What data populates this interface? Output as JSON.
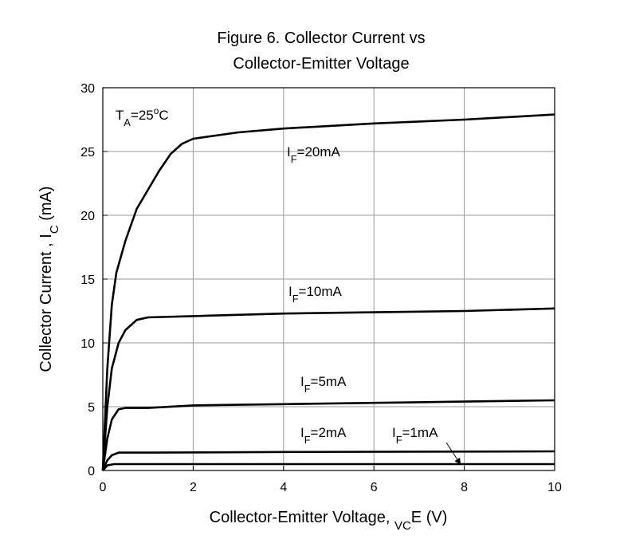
{
  "chart_data": {
    "type": "line",
    "title": [
      "Figure 6. Collector Current vs",
      "Collector-Emitter  Voltage"
    ],
    "xlabel": "Collector-Emitter Voltage, VCE (V)",
    "ylabel": "Collector Current , IC (mA)",
    "annotation": "TA=25oC",
    "xlim": [
      0,
      10
    ],
    "ylim": [
      0,
      30
    ],
    "xticks": [
      0,
      2,
      4,
      6,
      8,
      10
    ],
    "yticks": [
      0,
      5,
      10,
      15,
      20,
      25,
      30
    ],
    "grid": true,
    "series": [
      {
        "name": "IF=20mA",
        "color": "#000000",
        "x": [
          0,
          0.1,
          0.2,
          0.3,
          0.5,
          0.75,
          1,
          1.25,
          1.5,
          1.75,
          2,
          3,
          4,
          6,
          8,
          10
        ],
        "values": [
          0,
          8,
          13,
          15.5,
          18,
          20.5,
          22,
          23.5,
          24.8,
          25.6,
          26,
          26.5,
          26.8,
          27.2,
          27.5,
          27.9
        ]
      },
      {
        "name": "IF=10mA",
        "color": "#000000",
        "x": [
          0,
          0.1,
          0.2,
          0.35,
          0.5,
          0.75,
          1,
          2,
          4,
          6,
          8,
          10
        ],
        "values": [
          0,
          5,
          8,
          10,
          11,
          11.8,
          12,
          12.1,
          12.3,
          12.4,
          12.5,
          12.7
        ]
      },
      {
        "name": "IF=5mA",
        "color": "#000000",
        "x": [
          0,
          0.1,
          0.2,
          0.35,
          0.5,
          1,
          2,
          4,
          6,
          8,
          10
        ],
        "values": [
          0,
          2.5,
          4,
          4.8,
          4.9,
          4.9,
          5.1,
          5.2,
          5.3,
          5.4,
          5.5
        ]
      },
      {
        "name": "IF=2mA",
        "color": "#000000",
        "x": [
          0,
          0.1,
          0.2,
          0.35,
          1,
          4,
          10
        ],
        "values": [
          0,
          0.8,
          1.2,
          1.4,
          1.4,
          1.45,
          1.5
        ]
      },
      {
        "name": "IF=1mA",
        "color": "#000000",
        "x": [
          0,
          0.1,
          0.25,
          10
        ],
        "values": [
          0,
          0.4,
          0.5,
          0.5
        ]
      }
    ]
  }
}
